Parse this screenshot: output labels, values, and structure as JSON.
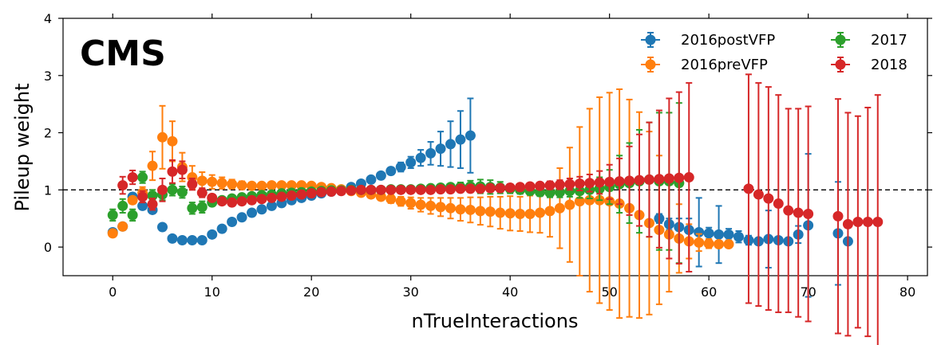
{
  "chart_data": {
    "type": "scatter",
    "experiment_label": "CMS",
    "xlabel": "nTrueInteractions",
    "ylabel": "Pileup weight",
    "xlim": [
      -5,
      82
    ],
    "ylim": [
      -0.5,
      4
    ],
    "xticks": [
      "0",
      "10",
      "20",
      "30",
      "40",
      "50",
      "60",
      "70",
      "80"
    ],
    "yticks": [
      "0",
      "1",
      "2",
      "3",
      "4"
    ],
    "reference_line": 1,
    "legend_position": "top-right",
    "series": [
      {
        "name": "2016postVFP",
        "color": "#1f77b4",
        "points": [
          [
            0,
            0.26,
            0.04
          ],
          [
            1,
            0.36,
            0.04
          ],
          [
            2,
            0.88,
            0.05
          ],
          [
            3,
            0.72,
            0.06
          ],
          [
            4,
            0.65,
            0.05
          ],
          [
            5,
            0.35,
            0.05
          ],
          [
            6,
            0.15,
            0.03
          ],
          [
            7,
            0.12,
            0.02
          ],
          [
            8,
            0.12,
            0.02
          ],
          [
            9,
            0.12,
            0.02
          ],
          [
            10,
            0.22,
            0.02
          ],
          [
            11,
            0.32,
            0.02
          ],
          [
            12,
            0.44,
            0.02
          ],
          [
            13,
            0.52,
            0.02
          ],
          [
            14,
            0.6,
            0.02
          ],
          [
            15,
            0.66,
            0.02
          ],
          [
            16,
            0.72,
            0.02
          ],
          [
            17,
            0.77,
            0.02
          ],
          [
            18,
            0.82,
            0.02
          ],
          [
            19,
            0.86,
            0.02
          ],
          [
            20,
            0.9,
            0.02
          ],
          [
            21,
            0.94,
            0.02
          ],
          [
            22,
            0.97,
            0.02
          ],
          [
            23,
            1.0,
            0.02
          ],
          [
            24,
            1.05,
            0.03
          ],
          [
            25,
            1.11,
            0.03
          ],
          [
            26,
            1.18,
            0.04
          ],
          [
            27,
            1.25,
            0.05
          ],
          [
            28,
            1.33,
            0.06
          ],
          [
            29,
            1.4,
            0.08
          ],
          [
            30,
            1.48,
            0.1
          ],
          [
            31,
            1.56,
            0.14
          ],
          [
            32,
            1.64,
            0.2
          ],
          [
            33,
            1.72,
            0.3
          ],
          [
            34,
            1.8,
            0.4
          ],
          [
            35,
            1.88,
            0.5
          ],
          [
            36,
            1.95,
            0.65
          ],
          [
            55,
            0.5,
            0.08
          ],
          [
            56,
            0.4,
            0.1
          ],
          [
            57,
            0.35,
            0.15
          ],
          [
            58,
            0.3,
            0.2
          ],
          [
            59,
            0.26,
            0.6
          ],
          [
            60,
            0.24,
            0.1
          ],
          [
            61,
            0.22,
            0.5
          ],
          [
            62,
            0.22,
            0.1
          ],
          [
            63,
            0.18,
            0.1
          ],
          [
            64,
            0.12,
            0.08
          ],
          [
            65,
            0.1,
            0.05
          ],
          [
            66,
            0.14,
            0.5
          ],
          [
            67,
            0.12,
            0.05
          ],
          [
            68,
            0.1,
            0.05
          ],
          [
            69,
            0.22,
            0.15
          ],
          [
            70,
            0.38,
            1.25
          ],
          [
            73,
            0.24,
            0.9
          ],
          [
            74,
            0.1,
            0.05
          ]
        ]
      },
      {
        "name": "2016preVFP",
        "color": "#ff7f0e",
        "points": [
          [
            0,
            0.24,
            0.04
          ],
          [
            1,
            0.36,
            0.05
          ],
          [
            2,
            0.82,
            0.06
          ],
          [
            3,
            0.95,
            0.1
          ],
          [
            4,
            1.42,
            0.25
          ],
          [
            5,
            1.92,
            0.55
          ],
          [
            6,
            1.85,
            0.35
          ],
          [
            7,
            1.4,
            0.25
          ],
          [
            8,
            1.22,
            0.2
          ],
          [
            9,
            1.16,
            0.15
          ],
          [
            10,
            1.14,
            0.12
          ],
          [
            11,
            1.12,
            0.1
          ],
          [
            12,
            1.1,
            0.08
          ],
          [
            13,
            1.08,
            0.07
          ],
          [
            14,
            1.07,
            0.06
          ],
          [
            15,
            1.07,
            0.05
          ],
          [
            16,
            1.08,
            0.05
          ],
          [
            17,
            1.08,
            0.04
          ],
          [
            18,
            1.08,
            0.04
          ],
          [
            19,
            1.08,
            0.03
          ],
          [
            20,
            1.07,
            0.03
          ],
          [
            21,
            1.05,
            0.03
          ],
          [
            22,
            1.03,
            0.03
          ],
          [
            23,
            1.01,
            0.03
          ],
          [
            24,
            0.98,
            0.03
          ],
          [
            25,
            0.95,
            0.04
          ],
          [
            26,
            0.92,
            0.05
          ],
          [
            27,
            0.88,
            0.06
          ],
          [
            28,
            0.84,
            0.07
          ],
          [
            29,
            0.8,
            0.08
          ],
          [
            30,
            0.77,
            0.1
          ],
          [
            31,
            0.74,
            0.12
          ],
          [
            32,
            0.72,
            0.14
          ],
          [
            33,
            0.7,
            0.16
          ],
          [
            34,
            0.68,
            0.18
          ],
          [
            35,
            0.66,
            0.2
          ],
          [
            36,
            0.65,
            0.22
          ],
          [
            37,
            0.63,
            0.24
          ],
          [
            38,
            0.62,
            0.26
          ],
          [
            39,
            0.6,
            0.28
          ],
          [
            40,
            0.59,
            0.3
          ],
          [
            41,
            0.58,
            0.3
          ],
          [
            42,
            0.58,
            0.32
          ],
          [
            43,
            0.6,
            0.35
          ],
          [
            44,
            0.63,
            0.45
          ],
          [
            45,
            0.68,
            0.7
          ],
          [
            46,
            0.74,
            1.0
          ],
          [
            47,
            0.8,
            1.3
          ],
          [
            48,
            0.82,
            1.6
          ],
          [
            49,
            0.82,
            1.8
          ],
          [
            50,
            0.8,
            1.9
          ],
          [
            51,
            0.76,
            2.0
          ],
          [
            52,
            0.68,
            1.9
          ],
          [
            53,
            0.56,
            1.8
          ],
          [
            54,
            0.42,
            1.6
          ],
          [
            55,
            0.3,
            1.3
          ],
          [
            56,
            0.22,
            1.0
          ],
          [
            57,
            0.15,
            0.6
          ],
          [
            58,
            0.1,
            0.3
          ],
          [
            59,
            0.08,
            0.15
          ],
          [
            60,
            0.06,
            0.08
          ],
          [
            61,
            0.05,
            0.05
          ],
          [
            62,
            0.05,
            0.05
          ]
        ]
      },
      {
        "name": "2017",
        "color": "#2ca02c",
        "points": [
          [
            0,
            0.56,
            0.1
          ],
          [
            1,
            0.72,
            0.12
          ],
          [
            2,
            0.56,
            0.1
          ],
          [
            3,
            1.22,
            0.1
          ],
          [
            4,
            0.9,
            0.1
          ],
          [
            5,
            0.92,
            0.1
          ],
          [
            6,
            1.0,
            0.1
          ],
          [
            7,
            0.96,
            0.1
          ],
          [
            8,
            0.68,
            0.1
          ],
          [
            9,
            0.7,
            0.1
          ],
          [
            10,
            0.78,
            0.05
          ],
          [
            11,
            0.82,
            0.04
          ],
          [
            12,
            0.85,
            0.04
          ],
          [
            13,
            0.87,
            0.03
          ],
          [
            14,
            0.89,
            0.03
          ],
          [
            15,
            0.91,
            0.03
          ],
          [
            16,
            0.92,
            0.02
          ],
          [
            17,
            0.94,
            0.02
          ],
          [
            18,
            0.95,
            0.02
          ],
          [
            19,
            0.96,
            0.02
          ],
          [
            20,
            0.97,
            0.02
          ],
          [
            21,
            0.98,
            0.02
          ],
          [
            22,
            0.99,
            0.02
          ],
          [
            23,
            0.99,
            0.02
          ],
          [
            24,
            1.0,
            0.02
          ],
          [
            25,
            1.0,
            0.02
          ],
          [
            26,
            1.0,
            0.02
          ],
          [
            27,
            1.0,
            0.02
          ],
          [
            28,
            1.01,
            0.02
          ],
          [
            29,
            1.01,
            0.02
          ],
          [
            30,
            1.01,
            0.02
          ],
          [
            31,
            1.02,
            0.03
          ],
          [
            32,
            1.03,
            0.03
          ],
          [
            33,
            1.04,
            0.04
          ],
          [
            34,
            1.05,
            0.05
          ],
          [
            35,
            1.05,
            0.08
          ],
          [
            36,
            1.06,
            0.1
          ],
          [
            37,
            1.06,
            0.12
          ],
          [
            38,
            1.05,
            0.12
          ],
          [
            39,
            1.04,
            0.1
          ],
          [
            40,
            1.02,
            0.08
          ],
          [
            41,
            1.0,
            0.07
          ],
          [
            42,
            0.98,
            0.06
          ],
          [
            43,
            0.96,
            0.07
          ],
          [
            44,
            0.95,
            0.08
          ],
          [
            45,
            0.96,
            0.09
          ],
          [
            46,
            0.98,
            0.1
          ],
          [
            47,
            0.98,
            0.12
          ],
          [
            48,
            1.0,
            0.15
          ],
          [
            49,
            1.02,
            0.2
          ],
          [
            50,
            1.05,
            0.3
          ],
          [
            51,
            1.1,
            0.5
          ],
          [
            52,
            1.12,
            0.7
          ],
          [
            53,
            1.15,
            0.9
          ],
          [
            54,
            1.18,
            1.0
          ],
          [
            55,
            1.15,
            1.2
          ],
          [
            56,
            1.15,
            1.2
          ],
          [
            57,
            1.12,
            1.4
          ]
        ]
      },
      {
        "name": "2018",
        "color": "#d62728",
        "points": [
          [
            1,
            1.08,
            0.15
          ],
          [
            2,
            1.22,
            0.12
          ],
          [
            3,
            0.88,
            0.1
          ],
          [
            4,
            0.75,
            0.1
          ],
          [
            5,
            1.0,
            0.2
          ],
          [
            6,
            1.32,
            0.2
          ],
          [
            7,
            1.35,
            0.15
          ],
          [
            8,
            1.1,
            0.1
          ],
          [
            9,
            0.95,
            0.08
          ],
          [
            10,
            0.86,
            0.06
          ],
          [
            11,
            0.8,
            0.05
          ],
          [
            12,
            0.78,
            0.04
          ],
          [
            13,
            0.8,
            0.04
          ],
          [
            14,
            0.82,
            0.03
          ],
          [
            15,
            0.84,
            0.03
          ],
          [
            16,
            0.86,
            0.03
          ],
          [
            17,
            0.88,
            0.02
          ],
          [
            18,
            0.9,
            0.02
          ],
          [
            19,
            0.92,
            0.02
          ],
          [
            20,
            0.94,
            0.02
          ],
          [
            21,
            0.96,
            0.02
          ],
          [
            22,
            0.97,
            0.02
          ],
          [
            23,
            0.98,
            0.02
          ],
          [
            24,
            0.99,
            0.02
          ],
          [
            25,
            1.0,
            0.02
          ],
          [
            26,
            1.0,
            0.02
          ],
          [
            27,
            1.0,
            0.02
          ],
          [
            28,
            1.0,
            0.02
          ],
          [
            29,
            1.0,
            0.02
          ],
          [
            30,
            1.0,
            0.02
          ],
          [
            31,
            1.0,
            0.02
          ],
          [
            32,
            1.0,
            0.02
          ],
          [
            33,
            1.01,
            0.02
          ],
          [
            34,
            1.01,
            0.02
          ],
          [
            35,
            1.02,
            0.02
          ],
          [
            36,
            1.02,
            0.02
          ],
          [
            37,
            1.02,
            0.02
          ],
          [
            38,
            1.03,
            0.03
          ],
          [
            39,
            1.03,
            0.03
          ],
          [
            40,
            1.04,
            0.03
          ],
          [
            41,
            1.05,
            0.04
          ],
          [
            42,
            1.06,
            0.05
          ],
          [
            43,
            1.07,
            0.06
          ],
          [
            44,
            1.08,
            0.07
          ],
          [
            45,
            1.09,
            0.08
          ],
          [
            46,
            1.1,
            0.1
          ],
          [
            47,
            1.11,
            0.12
          ],
          [
            48,
            1.12,
            0.15
          ],
          [
            49,
            1.13,
            0.2
          ],
          [
            50,
            1.14,
            0.3
          ],
          [
            51,
            1.15,
            0.4
          ],
          [
            52,
            1.16,
            0.6
          ],
          [
            53,
            1.17,
            0.8
          ],
          [
            54,
            1.18,
            1.0
          ],
          [
            55,
            1.19,
            1.2
          ],
          [
            56,
            1.2,
            1.4
          ],
          [
            57,
            1.21,
            1.5
          ],
          [
            58,
            1.22,
            1.65
          ],
          [
            64,
            1.02,
            2.0
          ],
          [
            65,
            0.92,
            1.95
          ],
          [
            66,
            0.85,
            1.95
          ],
          [
            67,
            0.76,
            1.9
          ],
          [
            68,
            0.64,
            1.78
          ],
          [
            69,
            0.6,
            1.82
          ],
          [
            70,
            0.58,
            1.88
          ],
          [
            73,
            0.54,
            2.05
          ],
          [
            74,
            0.4,
            1.95
          ],
          [
            75,
            0.44,
            1.85
          ],
          [
            76,
            0.44,
            2.0
          ],
          [
            77,
            0.44,
            2.22
          ]
        ]
      }
    ]
  }
}
